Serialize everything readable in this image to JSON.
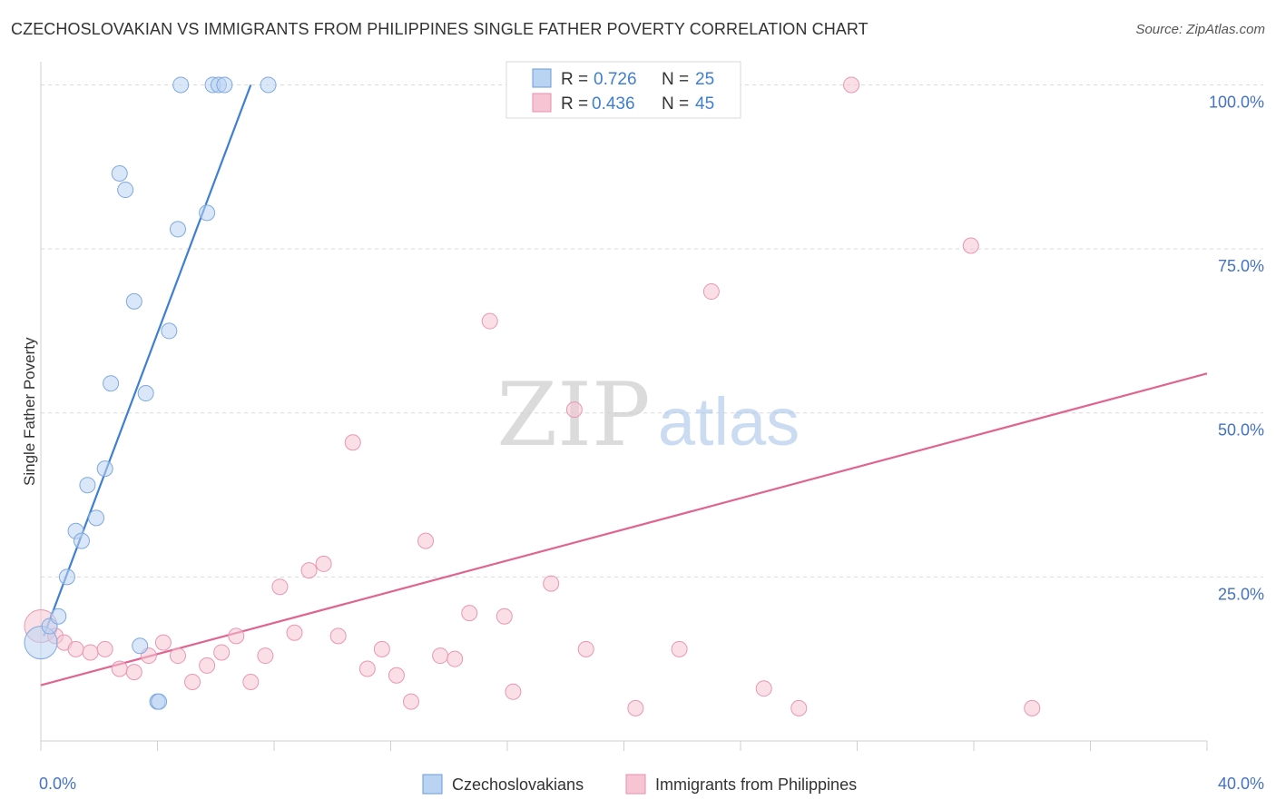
{
  "title": "CZECHOSLOVAKIAN VS IMMIGRANTS FROM PHILIPPINES SINGLE FATHER POVERTY CORRELATION CHART",
  "source": "Source: ZipAtlas.com",
  "watermark": {
    "zip": "ZIP",
    "atlas": "atlas"
  },
  "colors": {
    "blue": "#3f7fd1",
    "blue_fill": "#b9d3f3",
    "pink": "#e0648f",
    "pink_fill": "#f7c4d4",
    "tick_text": "#4472c4",
    "grid": "#d9d9d9"
  },
  "legend": {
    "blue": {
      "r_label": "R =",
      "r_value": "0.726",
      "n_label": "N =",
      "n_value": "25"
    },
    "pink": {
      "r_label": "R =",
      "r_value": "0.436",
      "n_label": "N =",
      "n_value": "45"
    }
  },
  "bottom_legend": [
    "Czechoslovakians",
    "Immigrants from Philippines"
  ],
  "chart_data": {
    "type": "scatter",
    "title": "CZECHOSLOVAKIAN VS IMMIGRANTS FROM PHILIPPINES SINGLE FATHER POVERTY CORRELATION CHART",
    "xlabel": "",
    "ylabel": "Single Father Poverty",
    "xlim": [
      0,
      40
    ],
    "ylim": [
      0,
      102
    ],
    "x_tick_labels": [
      "0.0%",
      "40.0%"
    ],
    "y_tick_values": [
      25,
      50,
      75,
      100
    ],
    "y_tick_labels": [
      "25.0%",
      "50.0%",
      "75.0%",
      "100.0%"
    ],
    "series": [
      {
        "name": "Czechoslovakians",
        "color": "#3f7fd1",
        "points": [
          [
            0.0,
            15.0,
            "big"
          ],
          [
            0.3,
            17.5
          ],
          [
            0.6,
            19.0
          ],
          [
            0.9,
            25.0
          ],
          [
            1.2,
            32.0
          ],
          [
            1.4,
            30.5
          ],
          [
            1.6,
            39.0
          ],
          [
            1.9,
            34.0
          ],
          [
            2.2,
            41.5
          ],
          [
            2.4,
            54.5
          ],
          [
            2.7,
            86.5
          ],
          [
            2.9,
            84.0
          ],
          [
            3.2,
            67.0
          ],
          [
            3.4,
            14.5
          ],
          [
            3.6,
            53.0
          ],
          [
            4.0,
            6.0
          ],
          [
            4.05,
            6.0
          ],
          [
            4.4,
            62.5
          ],
          [
            4.7,
            78.0
          ],
          [
            4.8,
            100.0
          ],
          [
            5.7,
            80.5
          ],
          [
            5.9,
            100.0
          ],
          [
            6.1,
            100.0
          ],
          [
            6.3,
            100.0
          ],
          [
            7.8,
            100.0
          ]
        ],
        "trend": {
          "x1": 0.1,
          "y1": 16.0,
          "x2": 7.2,
          "y2": 100.0
        }
      },
      {
        "name": "Immigrants from Philippines",
        "color": "#e0648f",
        "points": [
          [
            0.0,
            17.5,
            "big"
          ],
          [
            0.5,
            16.0
          ],
          [
            0.8,
            15.0
          ],
          [
            1.2,
            14.0
          ],
          [
            1.7,
            13.5
          ],
          [
            2.2,
            14.0
          ],
          [
            2.7,
            11.0
          ],
          [
            3.2,
            10.5
          ],
          [
            3.7,
            13.0
          ],
          [
            4.2,
            15.0
          ],
          [
            4.7,
            13.0
          ],
          [
            5.2,
            9.0
          ],
          [
            5.7,
            11.5
          ],
          [
            6.2,
            13.5
          ],
          [
            6.7,
            16.0
          ],
          [
            7.2,
            9.0
          ],
          [
            7.7,
            13.0
          ],
          [
            8.2,
            23.5
          ],
          [
            8.7,
            16.5
          ],
          [
            9.2,
            26.0
          ],
          [
            9.7,
            27.0
          ],
          [
            10.2,
            16.0
          ],
          [
            10.7,
            45.5
          ],
          [
            11.2,
            11.0
          ],
          [
            11.7,
            14.0
          ],
          [
            12.2,
            10.0
          ],
          [
            12.7,
            6.0
          ],
          [
            13.2,
            30.5
          ],
          [
            13.7,
            13.0
          ],
          [
            14.2,
            12.5
          ],
          [
            14.7,
            19.5
          ],
          [
            15.4,
            64.0
          ],
          [
            15.9,
            19.0
          ],
          [
            16.2,
            7.5
          ],
          [
            17.5,
            24.0
          ],
          [
            18.3,
            50.5
          ],
          [
            18.7,
            14.0
          ],
          [
            20.4,
            5.0
          ],
          [
            21.9,
            14.0
          ],
          [
            23.0,
            68.5
          ],
          [
            24.8,
            8.0
          ],
          [
            26.0,
            5.0
          ],
          [
            27.8,
            100.0
          ],
          [
            31.9,
            75.5
          ],
          [
            34.0,
            5.0
          ]
        ],
        "trend": {
          "x1": 0.0,
          "y1": 8.5,
          "x2": 40.0,
          "y2": 56.0
        }
      }
    ]
  }
}
